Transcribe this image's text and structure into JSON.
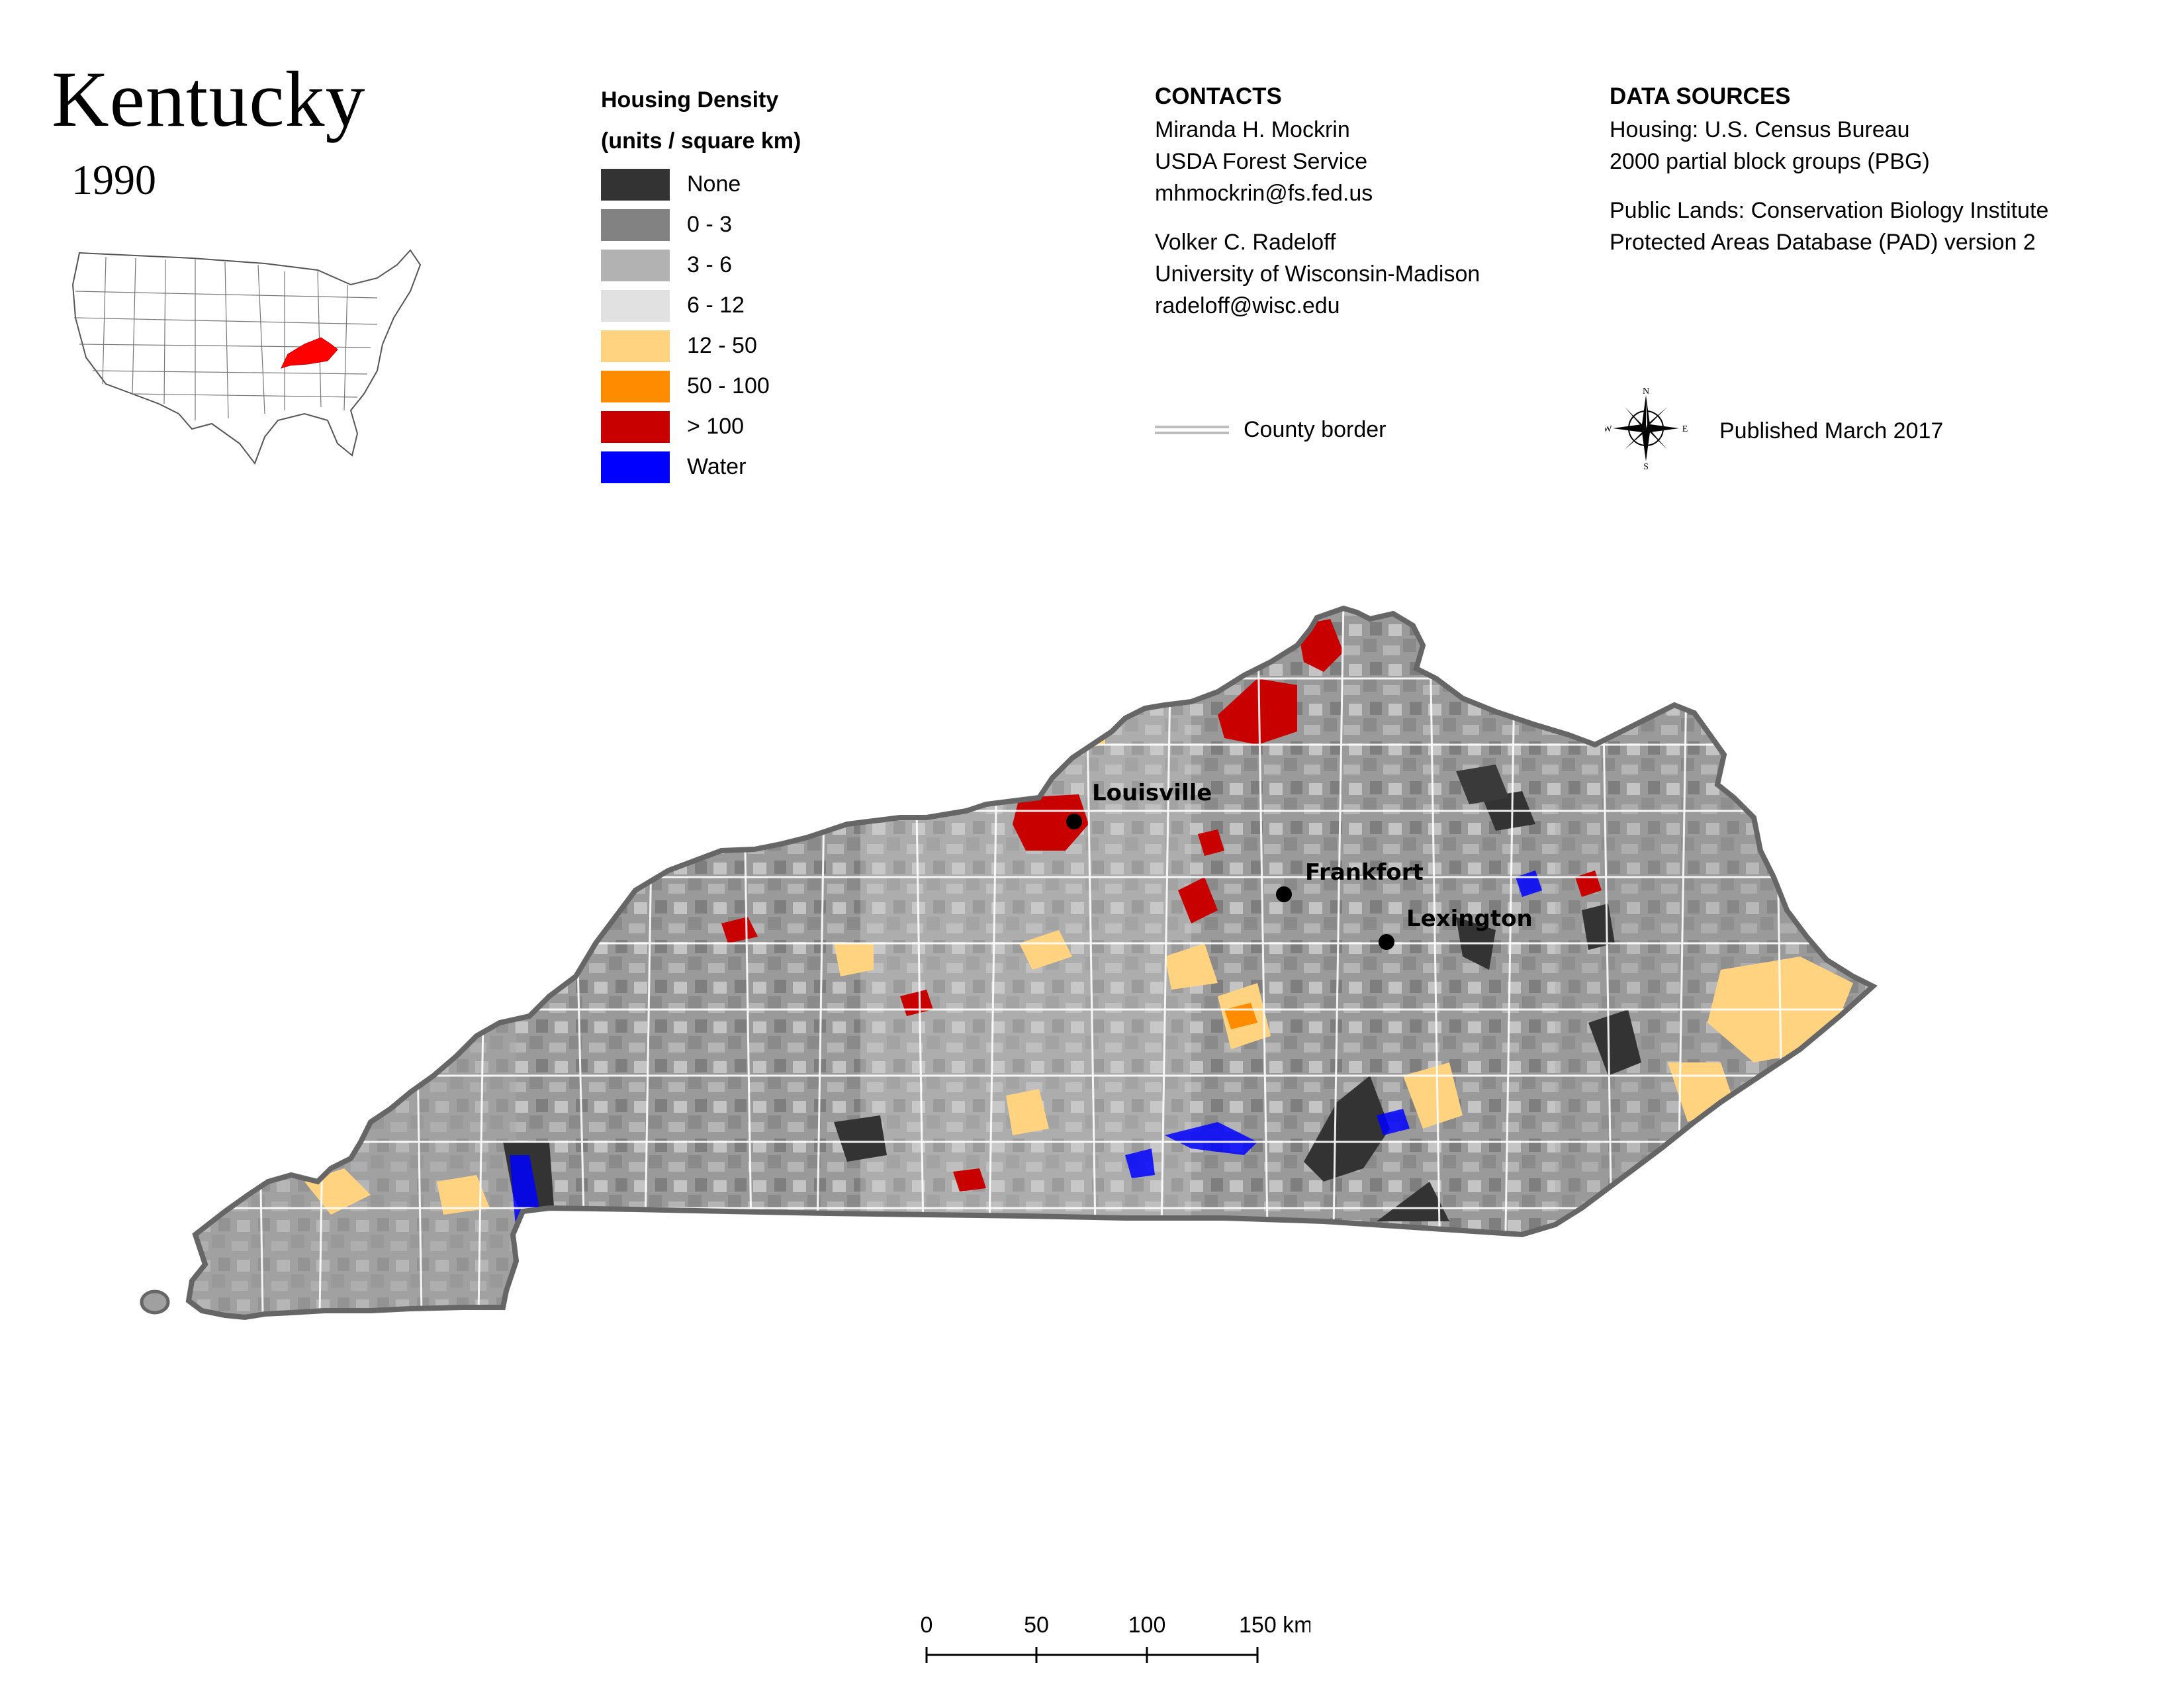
{
  "title": "Kentucky",
  "year": "1990",
  "legend": {
    "title_line1": "Housing Density",
    "title_line2": "(units / square km)",
    "items": [
      {
        "label": "None",
        "color": "#333333"
      },
      {
        "label": "0 - 3",
        "color": "#828282"
      },
      {
        "label": "3 - 6",
        "color": "#b2b2b2"
      },
      {
        "label": "6 - 12",
        "color": "#e1e1e1"
      },
      {
        "label": "12 - 50",
        "color": "#ffd37f"
      },
      {
        "label": "50 - 100",
        "color": "#ff8c00"
      },
      {
        "label": "> 100",
        "color": "#c80000"
      },
      {
        "label": "Water",
        "color": "#0000ff"
      }
    ]
  },
  "contacts": {
    "heading": "CONTACTS",
    "person1": {
      "name": "Miranda H. Mockrin",
      "org": "USDA Forest Service",
      "email": "mhmockrin@fs.fed.us"
    },
    "person2": {
      "name": "Volker C. Radeloff",
      "org": "University of Wisconsin-Madison",
      "email": "radeloff@wisc.edu"
    }
  },
  "data_sources": {
    "heading": "DATA SOURCES",
    "housing_line1": "Housing: U.S. Census Bureau",
    "housing_line2": "2000 partial block groups (PBG)",
    "lands_line1": "Public Lands: Conservation Biology Institute",
    "lands_line2": "Protected Areas Database (PAD) version 2"
  },
  "county_border_label": "County border",
  "published": "Published March 2017",
  "compass": {
    "n": "N",
    "s": "S",
    "e": "E",
    "w": "W"
  },
  "cities": {
    "louisville": "Louisville",
    "frankfort": "Frankfort",
    "lexington": "Lexington"
  },
  "scale": {
    "labels": [
      "0",
      "50",
      "100",
      "150 km"
    ]
  },
  "colors": {
    "state_outline": "#666666",
    "inset_highlight": "#ff0000"
  }
}
